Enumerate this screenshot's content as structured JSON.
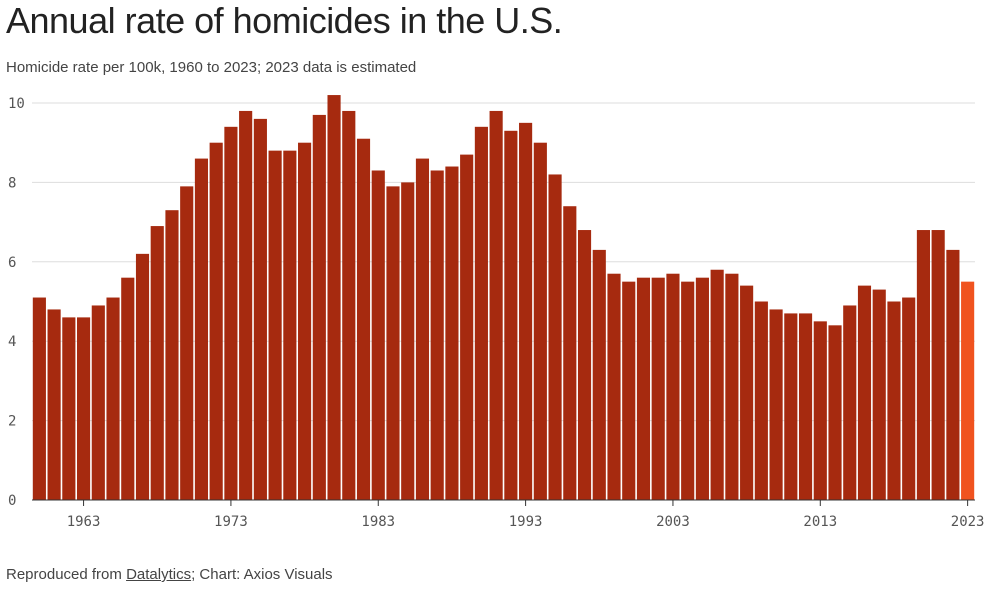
{
  "title": "Annual rate of homicides in the U.S.",
  "subtitle": "Homicide rate per 100k, 1960 to 2023; 2023 data is estimated",
  "footer": {
    "prefix": "Reproduced from ",
    "source_link": "Datalytics",
    "suffix": "; Chart: Axios Visuals"
  },
  "colors": {
    "bar": "#a62a0f",
    "estimated_bar": "#f0531f",
    "grid": "#dddddd",
    "axis": "#333333"
  },
  "chart_data": {
    "type": "bar",
    "x": [
      1960,
      1961,
      1962,
      1963,
      1964,
      1965,
      1966,
      1967,
      1968,
      1969,
      1970,
      1971,
      1972,
      1973,
      1974,
      1975,
      1976,
      1977,
      1978,
      1979,
      1980,
      1981,
      1982,
      1983,
      1984,
      1985,
      1986,
      1987,
      1988,
      1989,
      1990,
      1991,
      1992,
      1993,
      1994,
      1995,
      1996,
      1997,
      1998,
      1999,
      2000,
      2001,
      2002,
      2003,
      2004,
      2005,
      2006,
      2007,
      2008,
      2009,
      2010,
      2011,
      2012,
      2013,
      2014,
      2015,
      2016,
      2017,
      2018,
      2019,
      2020,
      2021,
      2022,
      2023
    ],
    "values": [
      5.1,
      4.8,
      4.6,
      4.6,
      4.9,
      5.1,
      5.6,
      6.2,
      6.9,
      7.3,
      7.9,
      8.6,
      9.0,
      9.4,
      9.8,
      9.6,
      8.8,
      8.8,
      9.0,
      9.7,
      10.2,
      9.8,
      9.1,
      8.3,
      7.9,
      8.0,
      8.6,
      8.3,
      8.4,
      8.7,
      9.4,
      9.8,
      9.3,
      9.5,
      9.0,
      8.2,
      7.4,
      6.8,
      6.3,
      5.7,
      5.5,
      5.6,
      5.6,
      5.7,
      5.5,
      5.6,
      5.8,
      5.7,
      5.4,
      5.0,
      4.8,
      4.7,
      4.7,
      4.5,
      4.4,
      4.9,
      5.4,
      5.3,
      5.0,
      5.1,
      6.8,
      6.8,
      6.3,
      5.5
    ],
    "estimated": [
      2023
    ],
    "yticks": [
      0,
      2,
      4,
      6,
      8,
      10
    ],
    "xticks": [
      1963,
      1973,
      1983,
      1993,
      2003,
      2013,
      2023
    ],
    "ylim": [
      0,
      10
    ],
    "grid": true,
    "xlabel": "",
    "ylabel": ""
  }
}
